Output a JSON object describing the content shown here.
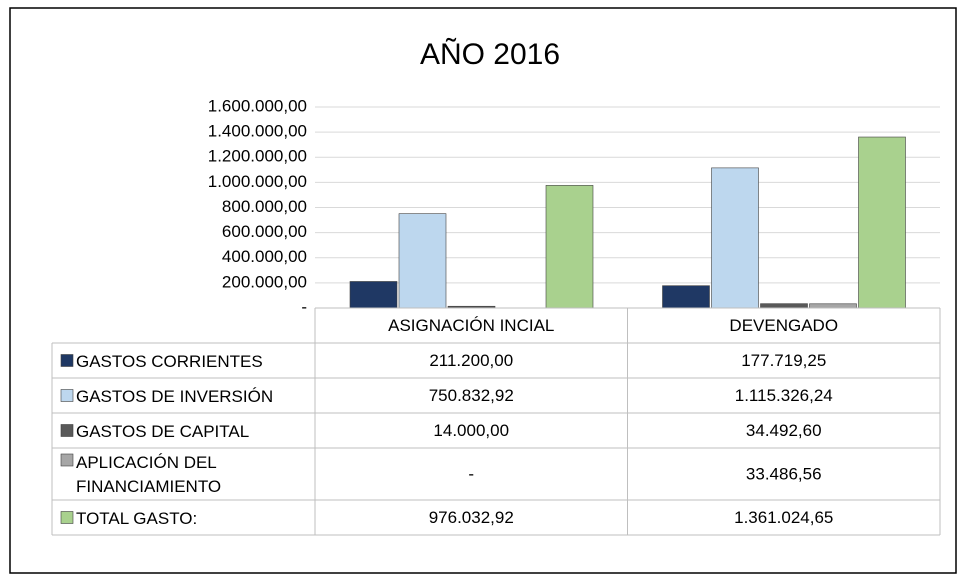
{
  "chart_data": {
    "type": "bar",
    "title": "AÑO 2016",
    "categories": [
      "ASIGNACIÓN INCIAL",
      "DEVENGADO"
    ],
    "series": [
      {
        "name": "GASTOS CORRIENTES",
        "color": "#1f3864",
        "values": [
          211200,
          177719.25
        ],
        "value_labels": [
          "211.200,00",
          "177.719,25"
        ]
      },
      {
        "name": "GASTOS DE INVERSIÓN",
        "color": "#bdd7ee",
        "values": [
          750832.92,
          1115326.24
        ],
        "value_labels": [
          "750.832,92",
          "1.115.326,24"
        ]
      },
      {
        "name": "GASTOS DE CAPITAL",
        "color": "#595959",
        "values": [
          14000,
          34492.6
        ],
        "value_labels": [
          "14.000,00",
          "34.492,60"
        ]
      },
      {
        "name": "APLICACIÓN DEL FINANCIAMIENTO",
        "color": "#a6a6a6",
        "values": [
          0,
          33486.56
        ],
        "value_labels": [
          "-",
          "33.486,56"
        ]
      },
      {
        "name": "TOTAL GASTO:",
        "color": "#a9d18e",
        "values": [
          976032.92,
          1361024.65
        ],
        "value_labels": [
          "976.032,92",
          "1.361.024,65"
        ]
      }
    ],
    "ylim": [
      0,
      1600000
    ],
    "yticks": [
      {
        "value": 0,
        "label": "-"
      },
      {
        "value": 200000,
        "label": "200.000,00"
      },
      {
        "value": 400000,
        "label": "400.000,00"
      },
      {
        "value": 600000,
        "label": "600.000,00"
      },
      {
        "value": 800000,
        "label": "800.000,00"
      },
      {
        "value": 1000000,
        "label": "1.000.000,00"
      },
      {
        "value": 1200000,
        "label": "1.200.000,00"
      },
      {
        "value": 1400000,
        "label": "1.400.000,00"
      },
      {
        "value": 1600000,
        "label": "1.600.000,00"
      }
    ],
    "grid": true
  }
}
